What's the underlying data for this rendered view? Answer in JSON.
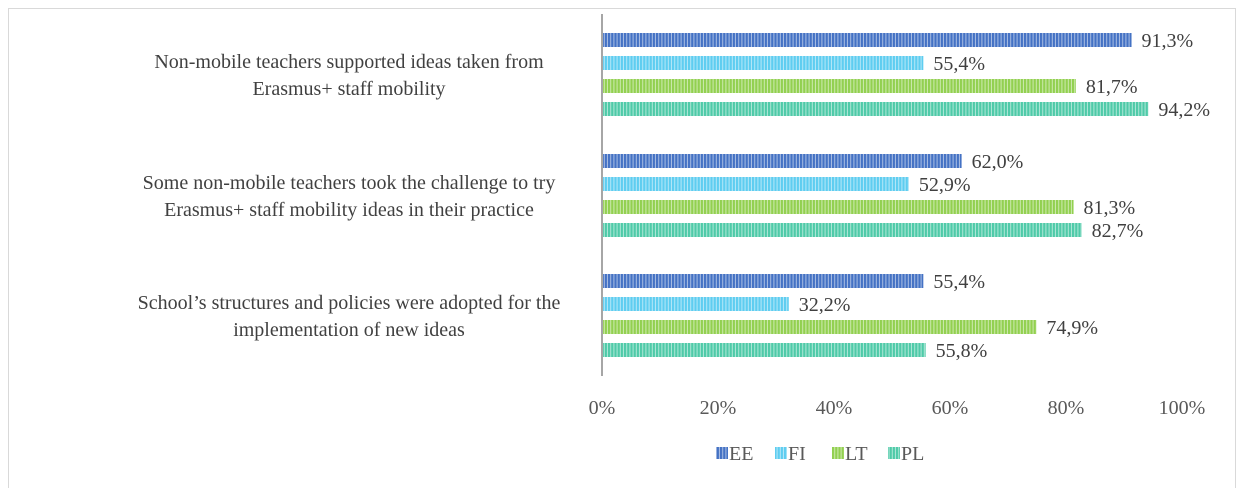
{
  "chart_data": {
    "type": "bar",
    "orientation": "horizontal",
    "title": "",
    "xlabel": "",
    "ylabel": "",
    "categories": [
      [
        "Non-mobile teachers supported ideas taken from",
        "Erasmus+ staff mobility"
      ],
      [
        "Some non-mobile teachers took the challenge to try",
        "Erasmus+ staff mobility ideas in their practice"
      ],
      [
        "School’s structures and policies were adopted for the",
        "implementation of new ideas"
      ]
    ],
    "series": [
      {
        "name": "EE",
        "color": "#4472c4",
        "values": [
          91.3,
          62.0,
          55.4
        ],
        "labels": [
          "91,3%",
          "62,0%",
          "55,4%"
        ]
      },
      {
        "name": "FI",
        "color": "#5ecdf0",
        "values": [
          55.4,
          52.9,
          32.2
        ],
        "labels": [
          "55,4%",
          "52,9%",
          "32,2%"
        ]
      },
      {
        "name": "LT",
        "color": "#92d050",
        "values": [
          81.7,
          81.3,
          74.9
        ],
        "labels": [
          "81,7%",
          "81,3%",
          "74,9%"
        ]
      },
      {
        "name": "PL",
        "color": "#4fcaa8",
        "values": [
          94.2,
          82.7,
          55.8
        ],
        "labels": [
          "94,2%",
          "82,7%",
          "55,8%"
        ]
      }
    ],
    "xlim": [
      0,
      100
    ],
    "ticks": [
      "0%",
      "20%",
      "40%",
      "60%",
      "80%",
      "100%"
    ],
    "grid": false,
    "legend_position": "bottom"
  }
}
